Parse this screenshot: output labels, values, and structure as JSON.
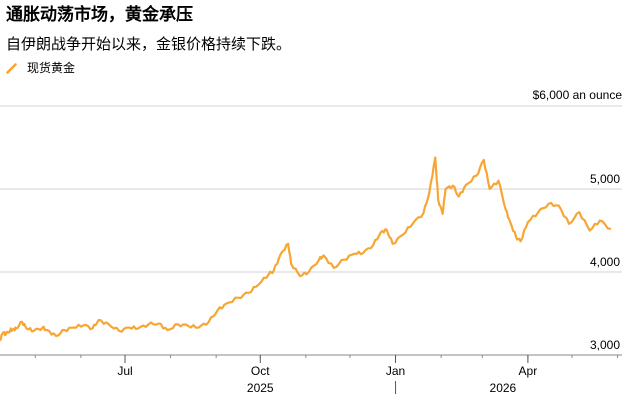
{
  "header": {
    "title": "通胀动荡市场，黄金承压",
    "subtitle": "自伊朗战争开始以来，金银价格持续下跌。"
  },
  "colors": {
    "series": "#f7a635",
    "grid": "#d3d3d3",
    "axis": "#8a8a8a"
  },
  "chart_data": {
    "type": "line",
    "unit_label": "$6,000 an ounce",
    "legend": {
      "position": "top-left",
      "entries": [
        "现货黄金"
      ]
    },
    "grid": true,
    "ylim": [
      3000,
      6000
    ],
    "xlim": [
      "2025-04-07",
      "2026-06-04"
    ],
    "y_ticks": [
      {
        "value": 3000,
        "label": "3,000"
      },
      {
        "value": 4000,
        "label": "4,000"
      },
      {
        "value": 5000,
        "label": "5,000"
      },
      {
        "value": 6000,
        "label": "$6,000 an ounce"
      }
    ],
    "x_ticks": [
      {
        "date": "2025-07-01",
        "label": "Jul"
      },
      {
        "date": "2025-10-01",
        "label": "Oct"
      },
      {
        "date": "2026-01-01",
        "label": "Jan"
      },
      {
        "date": "2026-04-01",
        "label": "Apr"
      }
    ],
    "year_labels": [
      {
        "date": "2025-10-01",
        "label": "2025"
      },
      {
        "date": "2026-03-15",
        "label": "2026"
      }
    ],
    "year_divider_date": "2026-01-01",
    "series": [
      {
        "name": "现货黄金",
        "x": [
          "2025-04-07",
          "2025-04-09",
          "2025-04-11",
          "2025-04-14",
          "2025-04-16",
          "2025-04-18",
          "2025-04-22",
          "2025-04-25",
          "2025-04-30",
          "2025-05-06",
          "2025-05-09",
          "2025-05-15",
          "2025-05-21",
          "2025-05-27",
          "2025-06-03",
          "2025-06-09",
          "2025-06-13",
          "2025-06-20",
          "2025-06-27",
          "2025-07-04",
          "2025-07-10",
          "2025-07-17",
          "2025-07-24",
          "2025-07-30",
          "2025-08-06",
          "2025-08-13",
          "2025-08-20",
          "2025-08-27",
          "2025-09-02",
          "2025-09-08",
          "2025-09-16",
          "2025-09-23",
          "2025-09-30",
          "2025-10-07",
          "2025-10-10",
          "2025-10-15",
          "2025-10-20",
          "2025-10-22",
          "2025-10-28",
          "2025-11-03",
          "2025-11-10",
          "2025-11-13",
          "2025-11-20",
          "2025-11-27",
          "2025-12-04",
          "2025-12-10",
          "2025-12-17",
          "2025-12-22",
          "2025-12-26",
          "2025-12-30",
          "2026-01-06",
          "2026-01-13",
          "2026-01-20",
          "2026-01-24",
          "2026-01-28",
          "2026-01-30",
          "2026-02-02",
          "2026-02-04",
          "2026-02-09",
          "2026-02-13",
          "2026-02-18",
          "2026-02-25",
          "2026-03-02",
          "2026-03-06",
          "2026-03-12",
          "2026-03-17",
          "2026-03-20",
          "2026-03-24",
          "2026-03-27",
          "2026-04-01",
          "2026-04-08",
          "2026-04-15",
          "2026-04-22",
          "2026-04-29",
          "2026-05-06",
          "2026-05-13",
          "2026-05-20",
          "2026-05-27"
        ],
        "y": [
          3180,
          3270,
          3250,
          3300,
          3310,
          3320,
          3400,
          3320,
          3290,
          3330,
          3300,
          3230,
          3300,
          3330,
          3360,
          3320,
          3420,
          3370,
          3290,
          3330,
          3320,
          3370,
          3380,
          3300,
          3370,
          3350,
          3330,
          3400,
          3540,
          3620,
          3690,
          3750,
          3850,
          3980,
          4010,
          4220,
          4340,
          4100,
          3950,
          4000,
          4150,
          4200,
          4050,
          4150,
          4220,
          4230,
          4330,
          4480,
          4510,
          4340,
          4450,
          4590,
          4710,
          4960,
          5380,
          4870,
          4700,
          5000,
          5040,
          4910,
          5050,
          5160,
          5350,
          5000,
          5100,
          4750,
          4600,
          4420,
          4370,
          4600,
          4720,
          4820,
          4800,
          4580,
          4720,
          4500,
          4620,
          4520
        ]
      }
    ]
  }
}
